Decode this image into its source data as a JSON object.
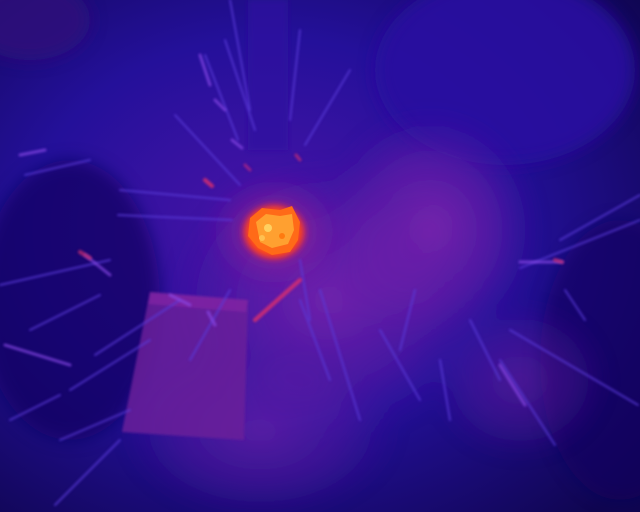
{
  "image": {
    "kind": "thermal-camera-frame",
    "subject": "sparks-and-hot-spot",
    "palette": {
      "background": "#10004a",
      "deep": "#1a0a8a",
      "mid": "#3a1ab0",
      "haze": "#6a1aa0",
      "warm": "#b0208a",
      "hot": "#ff3a10",
      "core": "#ffa030"
    }
  }
}
